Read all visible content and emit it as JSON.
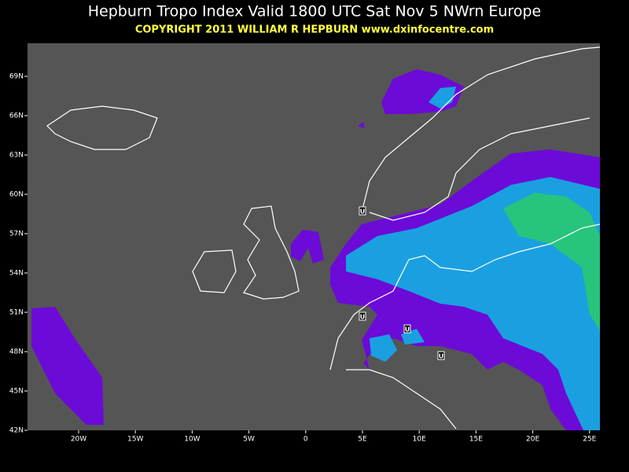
{
  "header": {
    "title": "Hepburn Tropo Index Valid 1800 UTC Sat Nov 5 NWrn Europe",
    "copyright": "COPYRIGHT 2011   WILLIAM R HEPBURN   www.dxinfocentre.com"
  },
  "map": {
    "lat_labels": [
      "69N",
      "66N",
      "63N",
      "60N",
      "57N",
      "54N",
      "51N",
      "48N",
      "45N",
      "42N"
    ],
    "lon_labels": [
      "20W",
      "15W",
      "10W",
      "5W",
      "0",
      "5E",
      "10E",
      "15E",
      "20E",
      "25E"
    ],
    "markers": [
      {
        "label": "U"
      },
      {
        "label": "U"
      },
      {
        "label": "U"
      },
      {
        "label": "U"
      }
    ]
  }
}
